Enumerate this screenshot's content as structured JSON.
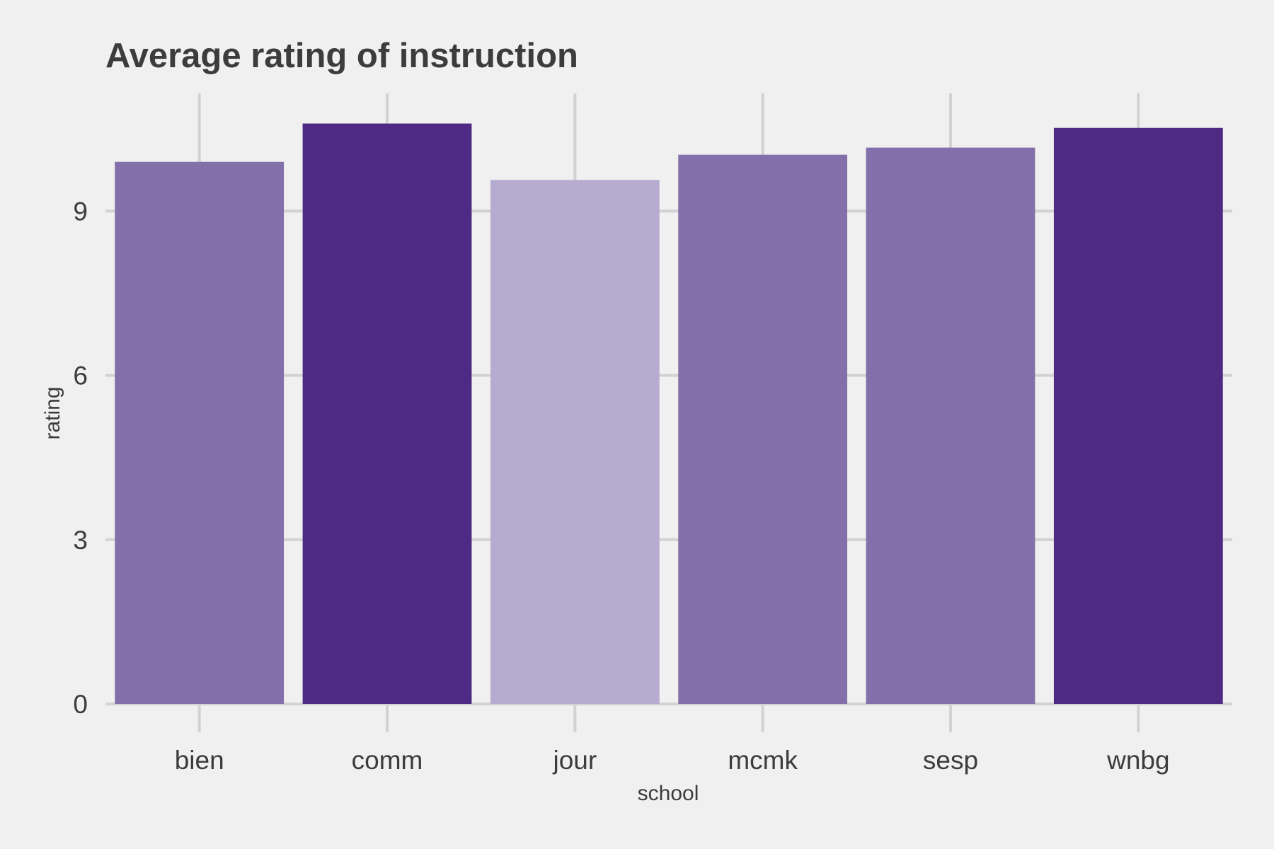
{
  "chart_data": {
    "type": "bar",
    "title": "Average rating of instruction",
    "xlabel": "school",
    "ylabel": "rating",
    "categories": [
      "bien",
      "comm",
      "jour",
      "mcmk",
      "sesp",
      "wnbg"
    ],
    "values": [
      9.9,
      10.6,
      9.57,
      10.03,
      10.16,
      10.52
    ],
    "bar_colors": [
      "#836fa9",
      "#4e2a84",
      "#b6acd1",
      "#836fa9",
      "#836fa9",
      "#4e2a84"
    ],
    "ylim": [
      0,
      11.15
    ],
    "yticks": [
      0,
      3,
      6,
      9
    ],
    "grid": true,
    "legend": "none"
  }
}
